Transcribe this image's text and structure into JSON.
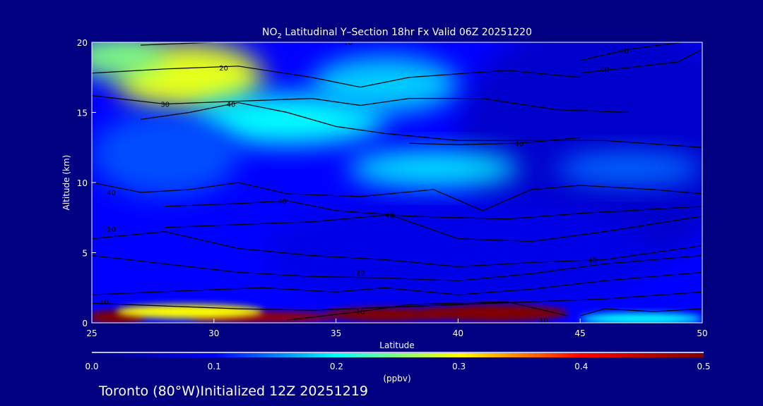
{
  "chart_data": {
    "type": "heatmap",
    "title_prefix": "NO",
    "title_subscript": "2",
    "title_rest": " Latitudinal Y–Section 18hr  Fx Valid 06Z 20251220",
    "xlabel": "Latitude",
    "ylabel": "Altitude (km)",
    "xlim": [
      25,
      50
    ],
    "ylim": [
      0,
      20
    ],
    "xticks": [
      25,
      30,
      35,
      40,
      45,
      50
    ],
    "yticks": [
      0,
      5,
      10,
      15,
      20
    ],
    "colorbar": {
      "label": "(ppbv)",
      "range": [
        0.0,
        0.5
      ],
      "ticks": [
        "0.0",
        "0.1",
        "0.2",
        "0.3",
        "0.4",
        "0.5"
      ],
      "colors": [
        "#000080",
        "#0000ff",
        "#00ffff",
        "#ffff00",
        "#ff0000",
        "#800000"
      ]
    },
    "field_background_value": 0.1,
    "field": [
      {
        "lat": 46,
        "alt": 13,
        "dlat": 6,
        "dalt": 9,
        "value": 0.06
      },
      {
        "lat": 40,
        "alt": 5,
        "dlat": 8,
        "dalt": 4,
        "value": 0.08
      },
      {
        "lat": 29,
        "alt": 17.5,
        "dlat": 3,
        "dalt": 2.5,
        "value": 0.29
      },
      {
        "lat": 26,
        "alt": 19,
        "dlat": 2,
        "dalt": 1.5,
        "value": 0.25
      },
      {
        "lat": 33,
        "alt": 14.5,
        "dlat": 4,
        "dalt": 1.8,
        "value": 0.2
      },
      {
        "lat": 37,
        "alt": 17,
        "dlat": 3,
        "dalt": 2,
        "value": 0.18
      },
      {
        "lat": 39,
        "alt": 11,
        "dlat": 3.5,
        "dalt": 1.3,
        "value": 0.19
      },
      {
        "lat": 47,
        "alt": 11,
        "dlat": 3,
        "dalt": 1.2,
        "value": 0.14
      },
      {
        "lat": 28,
        "alt": 12,
        "dlat": 3,
        "dalt": 3,
        "value": 0.13
      },
      {
        "lat": 26,
        "alt": 0.4,
        "dlat": 1.2,
        "dalt": 0.5,
        "value": 0.5
      },
      {
        "lat": 32,
        "alt": 0.4,
        "dlat": 3,
        "dalt": 0.4,
        "value": 0.48
      },
      {
        "lat": 37,
        "alt": 0.6,
        "dlat": 2.5,
        "dalt": 0.5,
        "value": 0.5
      },
      {
        "lat": 41.5,
        "alt": 0.7,
        "dlat": 3,
        "dalt": 0.6,
        "value": 0.5
      },
      {
        "lat": 29,
        "alt": 0.8,
        "dlat": 3,
        "dalt": 0.5,
        "value": 0.3
      },
      {
        "lat": 47.5,
        "alt": 0.3,
        "dlat": 2.5,
        "dalt": 0.4,
        "value": 0.2
      }
    ],
    "contours": [
      {
        "level": "10",
        "label_at": [
          35.5,
          20
        ],
        "points": [
          [
            27,
            19.8
          ],
          [
            30,
            20
          ],
          [
            33,
            20.2
          ],
          [
            36,
            20
          ]
        ]
      },
      {
        "level": "20",
        "label_at": [
          46.8,
          19.4
        ],
        "points": [
          [
            45,
            18.7
          ],
          [
            47,
            19.5
          ],
          [
            50,
            20.2
          ]
        ]
      },
      {
        "level": "20",
        "label_at": [
          30.4,
          18.2
        ],
        "points": [
          [
            25,
            17.8
          ],
          [
            28,
            18.1
          ],
          [
            31,
            18.3
          ],
          [
            34,
            17.5
          ],
          [
            36,
            16.8
          ],
          [
            38,
            17.5
          ],
          [
            42,
            18
          ],
          [
            45,
            17.5
          ]
        ]
      },
      {
        "level": "30",
        "label_at": [
          28,
          15.6
        ],
        "points": [
          [
            25,
            16.2
          ],
          [
            28,
            15.6
          ],
          [
            31,
            15.8
          ],
          [
            34,
            16
          ],
          [
            36,
            15.5
          ],
          [
            38,
            16
          ],
          [
            41,
            16
          ],
          [
            44,
            15.2
          ],
          [
            47,
            15
          ]
        ]
      },
      {
        "level": "40",
        "label_at": [
          30.7,
          15.6
        ],
        "points": [
          [
            27,
            14.5
          ],
          [
            29,
            15
          ],
          [
            31,
            15.7
          ],
          [
            33,
            15
          ],
          [
            35,
            14
          ],
          [
            37,
            13.5
          ],
          [
            40,
            13
          ],
          [
            43,
            13
          ],
          [
            46,
            13
          ],
          [
            50,
            12.5
          ]
        ]
      },
      {
        "level": "40",
        "label_at": [
          46,
          18.1
        ],
        "points": [
          [
            45,
            17.8
          ],
          [
            47,
            18.2
          ],
          [
            49,
            18.6
          ],
          [
            50,
            19.5
          ]
        ]
      },
      {
        "level": "40",
        "label_at": [
          42.5,
          12.8
        ],
        "points": [
          [
            38,
            12.8
          ],
          [
            40,
            12.7
          ],
          [
            42.5,
            12.8
          ],
          [
            45,
            13.2
          ]
        ]
      },
      {
        "level": "40",
        "label_at": [
          25.8,
          9.3
        ],
        "points": [
          [
            25,
            10
          ],
          [
            27,
            9.3
          ],
          [
            29,
            9.5
          ],
          [
            31,
            10
          ],
          [
            33,
            9.2
          ],
          [
            36,
            9
          ],
          [
            39,
            9.5
          ],
          [
            41,
            8
          ],
          [
            43,
            9.5
          ],
          [
            45,
            9.8
          ],
          [
            48,
            9.5
          ],
          [
            50,
            9.2
          ]
        ]
      },
      {
        "level": "40",
        "label_at": [
          32.8,
          8.7
        ],
        "points": [
          [
            28,
            8.3
          ],
          [
            31,
            8.5
          ],
          [
            33,
            8.7
          ],
          [
            35,
            8
          ],
          [
            38,
            7.6
          ],
          [
            42,
            7.4
          ],
          [
            45,
            7.8
          ],
          [
            50,
            8.3
          ]
        ]
      },
      {
        "level": "40",
        "label_at": [
          37.2,
          7.7
        ],
        "points": [
          [
            28,
            6.8
          ],
          [
            31,
            7
          ],
          [
            34,
            7.2
          ],
          [
            37.2,
            7.7
          ],
          [
            40,
            6
          ],
          [
            43,
            5.8
          ],
          [
            46,
            6.5
          ],
          [
            50,
            7.6
          ]
        ]
      },
      {
        "level": "10",
        "label_at": [
          25.8,
          6.7
        ],
        "points": [
          [
            25,
            6
          ],
          [
            28,
            6.5
          ],
          [
            31,
            5.3
          ],
          [
            34,
            4.8
          ],
          [
            37,
            4.5
          ],
          [
            40,
            4
          ],
          [
            43,
            4.3
          ],
          [
            46,
            4.5
          ],
          [
            50,
            5.5
          ]
        ]
      },
      {
        "level": "40",
        "label_at": [
          45.5,
          4.5
        ],
        "points": [
          [
            25,
            4.8
          ],
          [
            28,
            4.2
          ],
          [
            31,
            3.6
          ],
          [
            34,
            3.3
          ],
          [
            37,
            3.2
          ],
          [
            40,
            3
          ],
          [
            43,
            3.5
          ],
          [
            46,
            4.2
          ],
          [
            50,
            4.8
          ]
        ]
      },
      {
        "level": "20",
        "label_at": [
          36,
          3.6
        ],
        "points": [
          [
            25,
            2
          ],
          [
            29,
            2.3
          ],
          [
            32,
            2.5
          ],
          [
            35,
            2.2
          ],
          [
            37,
            2.5
          ],
          [
            40,
            2
          ],
          [
            43,
            2.4
          ],
          [
            46,
            3
          ],
          [
            50,
            3.6
          ]
        ]
      },
      {
        "level": "10",
        "label_at": [
          25.5,
          1.5
        ],
        "points": [
          [
            25,
            1.4
          ],
          [
            28,
            1.2
          ],
          [
            31,
            1
          ],
          [
            34,
            0.9
          ],
          [
            37,
            1.1
          ],
          [
            40,
            1.3
          ],
          [
            43,
            1.5
          ],
          [
            46,
            1.7
          ],
          [
            50,
            2.2
          ]
        ]
      },
      {
        "level": "10",
        "label_at": [
          36,
          0.8
        ],
        "points": [
          [
            33,
            0.2
          ],
          [
            36,
            0.8
          ],
          [
            38,
            1.3
          ],
          [
            42,
            1.5
          ],
          [
            44.5,
            0.5
          ]
        ]
      },
      {
        "level": "10",
        "label_at": [
          43.5,
          0.2
        ],
        "points": [
          [
            45,
            0.5
          ],
          [
            46,
            1
          ],
          [
            48,
            0.8
          ],
          [
            50,
            1
          ]
        ]
      }
    ]
  },
  "footer": {
    "location": "Toronto (80°W)Initialized 12Z 20251219"
  }
}
